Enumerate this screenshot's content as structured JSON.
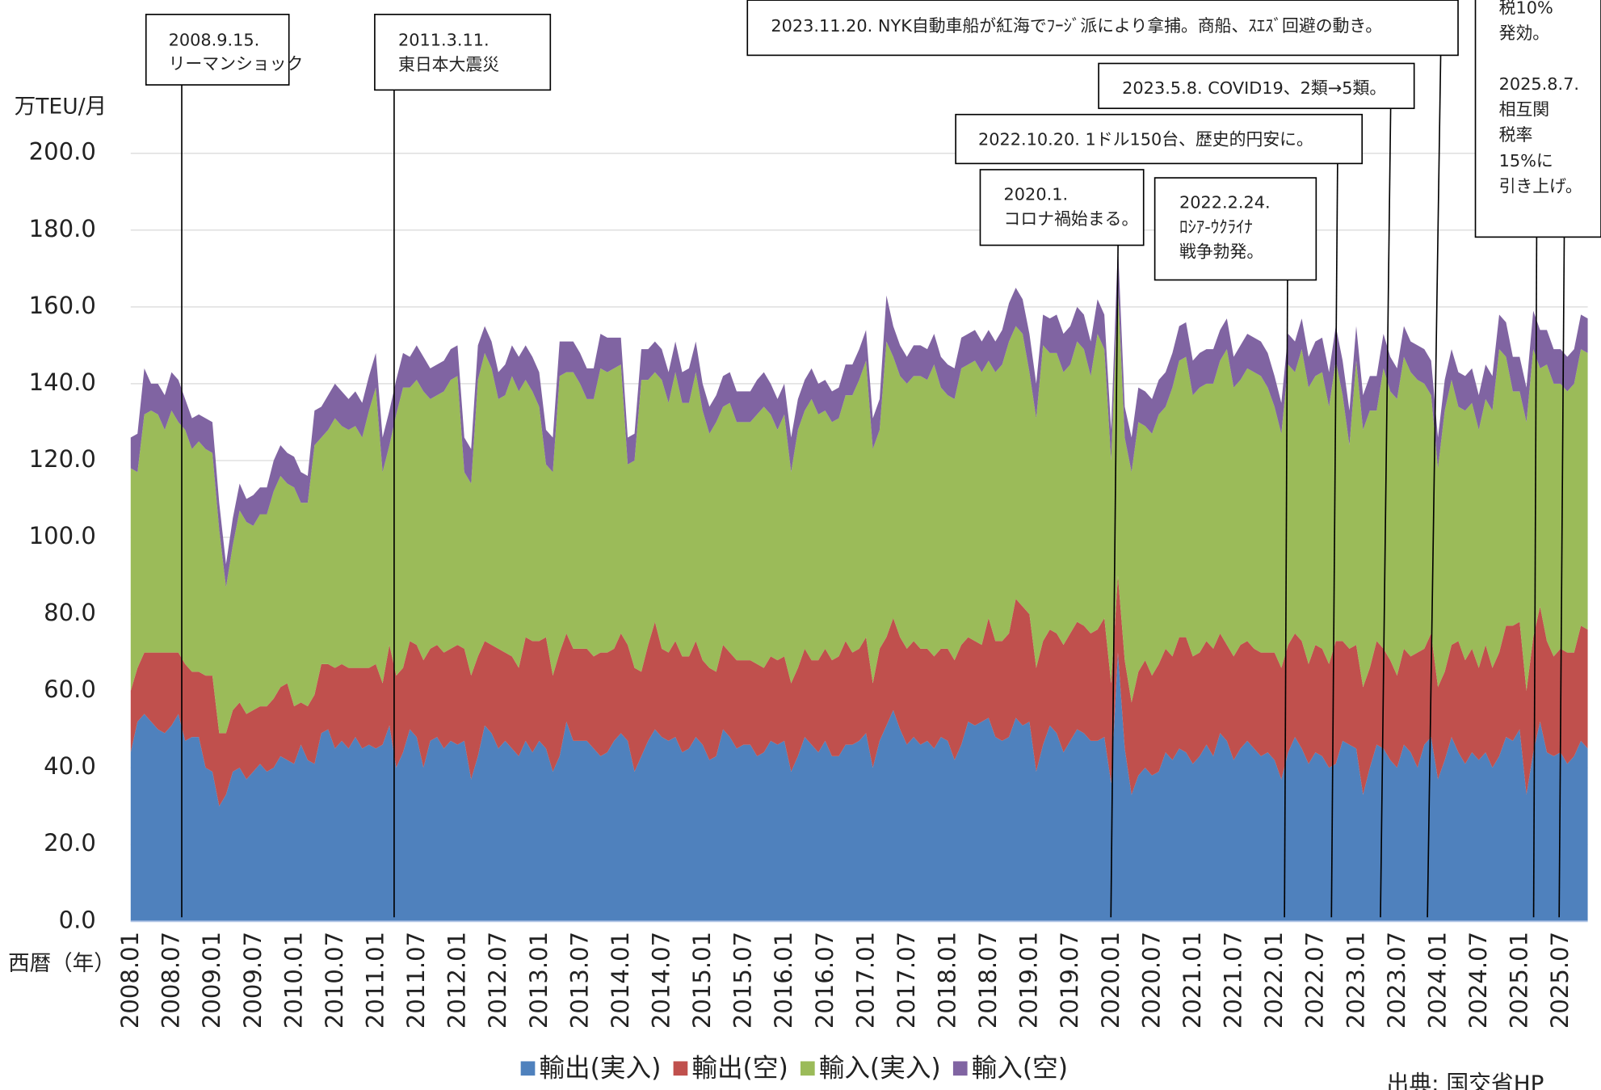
{
  "chart_data": {
    "type": "area",
    "y_label": "万TEU/月",
    "x_label": "西暦（年）",
    "source": "出典: 国交省HP",
    "stacked": true,
    "grid": true,
    "legend": "bottom",
    "ylim": [
      0,
      200
    ],
    "yticks": [
      {
        "value": 0,
        "label": "0.0"
      },
      {
        "value": 20,
        "label": "20.0"
      },
      {
        "value": 40,
        "label": "40.0"
      },
      {
        "value": 60,
        "label": "60.0"
      },
      {
        "value": 80,
        "label": "80.0"
      },
      {
        "value": 100,
        "label": "100.0"
      },
      {
        "value": 120,
        "label": "120.0"
      },
      {
        "value": 140,
        "label": "140.0"
      },
      {
        "value": 160,
        "label": "160.0"
      },
      {
        "value": 180,
        "label": "180.0"
      },
      {
        "value": 200,
        "label": "200.0"
      }
    ],
    "categories": [
      "2008.01",
      null,
      null,
      null,
      null,
      null,
      "2008.07",
      null,
      null,
      null,
      null,
      null,
      "2009.01",
      null,
      null,
      null,
      null,
      null,
      "2009.07",
      null,
      null,
      null,
      null,
      null,
      "2010.01",
      null,
      null,
      null,
      null,
      null,
      "2010.07",
      null,
      null,
      null,
      null,
      null,
      "2011.01",
      null,
      null,
      null,
      null,
      null,
      "2011.07",
      null,
      null,
      null,
      null,
      null,
      "2012.01",
      null,
      null,
      null,
      null,
      null,
      "2012.07",
      null,
      null,
      null,
      null,
      null,
      "2013.01",
      null,
      null,
      null,
      null,
      null,
      "2013.07",
      null,
      null,
      null,
      null,
      null,
      "2014.01",
      null,
      null,
      null,
      null,
      null,
      "2014.07",
      null,
      null,
      null,
      null,
      null,
      "2015.01",
      null,
      null,
      null,
      null,
      null,
      "2015.07",
      null,
      null,
      null,
      null,
      null,
      "2016.01",
      null,
      null,
      null,
      null,
      null,
      "2016.07",
      null,
      null,
      null,
      null,
      null,
      "2017.01",
      null,
      null,
      null,
      null,
      null,
      "2017.07",
      null,
      null,
      null,
      null,
      null,
      "2018.01",
      null,
      null,
      null,
      null,
      null,
      "2018.07",
      null,
      null,
      null,
      null,
      null,
      "2019.01",
      null,
      null,
      null,
      null,
      null,
      "2019.07",
      null,
      null,
      null,
      null,
      null,
      "2020.01",
      null,
      null,
      null,
      null,
      null,
      "2020.07",
      null,
      null,
      null,
      null,
      null,
      "2021.01",
      null,
      null,
      null,
      null,
      null,
      "2021.07",
      null,
      null,
      null,
      null,
      null,
      "2022.01",
      null,
      null,
      null,
      null,
      null,
      "2022.07",
      null,
      null,
      null,
      null,
      null,
      "2023.01",
      null,
      null,
      null,
      null,
      null,
      "2023.07",
      null,
      null,
      null,
      null,
      null,
      "2024.01",
      null,
      null,
      null,
      null,
      null,
      "2024.07",
      null,
      null,
      null,
      null,
      null,
      "2025.01",
      null,
      null,
      null,
      null,
      null,
      "2025.07",
      null,
      null,
      null,
      null
    ],
    "series": [
      {
        "name": "輸出(実入)",
        "color": "#4f81bd",
        "values": [
          44,
          52,
          54,
          52,
          50,
          49,
          51,
          54,
          47,
          48,
          48,
          40,
          39,
          30,
          33,
          39,
          40,
          37,
          39,
          41,
          39,
          40,
          43,
          42,
          41,
          46,
          42,
          41,
          49,
          50,
          45,
          47,
          45,
          48,
          45,
          46,
          45,
          46,
          51,
          40,
          44,
          50,
          48,
          40,
          47,
          48,
          45,
          47,
          46,
          47,
          37,
          43,
          51,
          49,
          45,
          47,
          45,
          43,
          47,
          44,
          47,
          45,
          39,
          43,
          52,
          47,
          47,
          47,
          45,
          43,
          44,
          47,
          49,
          47,
          39,
          43,
          47,
          50,
          48,
          47,
          48,
          44,
          45,
          48,
          46,
          42,
          43,
          50,
          48,
          45,
          46,
          46,
          43,
          44,
          47,
          46,
          47,
          39,
          43,
          48,
          46,
          44,
          47,
          43,
          43,
          46,
          46,
          47,
          49,
          40,
          47,
          51,
          55,
          50,
          46,
          48,
          46,
          47,
          45,
          48,
          47,
          42,
          46,
          52,
          51,
          52,
          53,
          48,
          47,
          48,
          53,
          51,
          52,
          39,
          46,
          51,
          49,
          44,
          47,
          50,
          49,
          47,
          47,
          48,
          36,
          70,
          45,
          33,
          38,
          40,
          38,
          39,
          44,
          42,
          45,
          44,
          41,
          43,
          46,
          43,
          49,
          47,
          42,
          45,
          47,
          45,
          43,
          44,
          42,
          37,
          44,
          48,
          45,
          41,
          44,
          43,
          40,
          41,
          47,
          46,
          45,
          33,
          40,
          46,
          45,
          42,
          40,
          46,
          44,
          40,
          46,
          48,
          37,
          42,
          48,
          44,
          41,
          44,
          42,
          44,
          40,
          43,
          48,
          47,
          50,
          33,
          44,
          52,
          44,
          43,
          44,
          41,
          43,
          47,
          45
        ]
      },
      {
        "name": "輸出(空)",
        "color": "#c0504d",
        "values": [
          16,
          14,
          16,
          18,
          20,
          21,
          19,
          16,
          20,
          17,
          17,
          24,
          25,
          19,
          16,
          16,
          17,
          17,
          16,
          15,
          17,
          18,
          18,
          20,
          15,
          11,
          14,
          18,
          18,
          17,
          21,
          20,
          21,
          18,
          21,
          20,
          22,
          16,
          21,
          24,
          22,
          23,
          24,
          28,
          24,
          24,
          25,
          24,
          26,
          24,
          27,
          26,
          22,
          23,
          26,
          23,
          24,
          23,
          27,
          29,
          26,
          29,
          25,
          27,
          23,
          24,
          24,
          24,
          24,
          27,
          26,
          24,
          26,
          25,
          27,
          22,
          25,
          28,
          23,
          23,
          25,
          25,
          24,
          25,
          22,
          24,
          22,
          22,
          22,
          23,
          22,
          22,
          24,
          22,
          22,
          22,
          22,
          23,
          23,
          23,
          22,
          24,
          24,
          25,
          26,
          27,
          24,
          24,
          25,
          22,
          24,
          23,
          24,
          24,
          25,
          25,
          25,
          24,
          24,
          23,
          24,
          26,
          26,
          22,
          22,
          20,
          26,
          25,
          26,
          27,
          31,
          31,
          28,
          27,
          27,
          25,
          26,
          28,
          28,
          28,
          28,
          28,
          29,
          31,
          26,
          20,
          23,
          24,
          27,
          28,
          26,
          28,
          27,
          27,
          29,
          30,
          28,
          27,
          27,
          28,
          26,
          25,
          27,
          27,
          26,
          26,
          27,
          26,
          28,
          29,
          28,
          27,
          28,
          26,
          28,
          28,
          27,
          32,
          26,
          25,
          27,
          28,
          26,
          27,
          26,
          26,
          24,
          25,
          25,
          30,
          25,
          27,
          24,
          23,
          24,
          29,
          27,
          27,
          24,
          28,
          26,
          27,
          29,
          30,
          28,
          27,
          30,
          30,
          29,
          26,
          27,
          29,
          27,
          30,
          31
        ]
      },
      {
        "name": "輸入(実入)",
        "color": "#9bbb59",
        "values": [
          58,
          51,
          62,
          63,
          62,
          58,
          63,
          60,
          61,
          58,
          60,
          59,
          58,
          53,
          38,
          43,
          50,
          50,
          48,
          50,
          50,
          54,
          55,
          52,
          57,
          52,
          53,
          65,
          59,
          61,
          65,
          62,
          62,
          63,
          60,
          67,
          72,
          55,
          52,
          68,
          73,
          66,
          69,
          70,
          65,
          65,
          68,
          70,
          70,
          46,
          50,
          72,
          75,
          72,
          65,
          67,
          73,
          72,
          67,
          65,
          61,
          45,
          53,
          72,
          68,
          72,
          69,
          65,
          67,
          74,
          73,
          73,
          70,
          47,
          54,
          76,
          69,
          65,
          70,
          65,
          70,
          66,
          66,
          70,
          65,
          61,
          65,
          62,
          65,
          62,
          62,
          62,
          65,
          68,
          63,
          60,
          63,
          55,
          62,
          62,
          68,
          64,
          62,
          62,
          62,
          64,
          67,
          70,
          72,
          61,
          57,
          77,
          68,
          68,
          69,
          69,
          71,
          70,
          76,
          68,
          66,
          68,
          72,
          71,
          73,
          71,
          67,
          70,
          72,
          76,
          71,
          71,
          63,
          65,
          77,
          72,
          73,
          71,
          70,
          73,
          72,
          67,
          77,
          70,
          58,
          75,
          58,
          60,
          65,
          61,
          63,
          65,
          63,
          70,
          72,
          73,
          68,
          69,
          67,
          69,
          71,
          77,
          70,
          69,
          71,
          72,
          72,
          69,
          64,
          61,
          73,
          68,
          76,
          72,
          70,
          72,
          67,
          73,
          64,
          53,
          74,
          67,
          67,
          60,
          73,
          70,
          72,
          76,
          74,
          71,
          69,
          62,
          57,
          68,
          69,
          61,
          65,
          64,
          62,
          64,
          67,
          79,
          70,
          61,
          60,
          70,
          75,
          62,
          72,
          71,
          69,
          68,
          70,
          72,
          72
        ]
      },
      {
        "name": "輸入(空)",
        "color": "#8064a2",
        "values": [
          8,
          10,
          12,
          7,
          8,
          9,
          10,
          11,
          8,
          8,
          7,
          8,
          8,
          7,
          6,
          7,
          7,
          6,
          8,
          7,
          7,
          8,
          8,
          8,
          8,
          8,
          7,
          9,
          8,
          9,
          9,
          9,
          8,
          9,
          9,
          9,
          9,
          9,
          9,
          9,
          9,
          8,
          9,
          9,
          8,
          8,
          8,
          8,
          8,
          9,
          9,
          9,
          7,
          7,
          7,
          8,
          8,
          9,
          9,
          9,
          9,
          9,
          9,
          9,
          8,
          8,
          8,
          8,
          8,
          9,
          9,
          8,
          7,
          7,
          7,
          8,
          8,
          8,
          8,
          8,
          8,
          8,
          9,
          8,
          7,
          7,
          7,
          8,
          8,
          8,
          8,
          8,
          9,
          9,
          8,
          8,
          8,
          9,
          8,
          8,
          8,
          8,
          8,
          8,
          8,
          8,
          8,
          8,
          8,
          8,
          8,
          12,
          8,
          8,
          7,
          8,
          8,
          8,
          8,
          8,
          8,
          8,
          8,
          8,
          8,
          8,
          8,
          8,
          9,
          10,
          10,
          9,
          10,
          9,
          8,
          9,
          10,
          10,
          10,
          9,
          9,
          9,
          9,
          9,
          8,
          11,
          8,
          9,
          9,
          9,
          9,
          9,
          9,
          9,
          9,
          9,
          9,
          9,
          9,
          9,
          8,
          8,
          8,
          9,
          9,
          9,
          9,
          9,
          8,
          8,
          8,
          8,
          8,
          8,
          9,
          9,
          9,
          9,
          9,
          9,
          9,
          9,
          9,
          9,
          9,
          9,
          8,
          8,
          8,
          9,
          9,
          9,
          8,
          8,
          8,
          9,
          9,
          9,
          9,
          9,
          9,
          9,
          9,
          9,
          9,
          9,
          10,
          10,
          9,
          9,
          9,
          9,
          9,
          9,
          9
        ]
      }
    ],
    "annotations": [
      {
        "lines": [
          "2008.9.15.",
          "リーマンショック"
        ]
      },
      {
        "lines": [
          "2011.3.11.",
          "東日本大震災"
        ]
      },
      {
        "lines": [
          "2023.11.20. NYK自動車船が紅海でﾌｰｼﾞ派により拿捕。商船、ｽｴｽﾞ回避の動き。"
        ]
      },
      {
        "lines": [
          "2023.5.8. COVID19、2類→5類。"
        ]
      },
      {
        "lines": [
          "2022.10.20. 1ドル150台、歴史的円安に。"
        ]
      },
      {
        "lines": [
          "2020.1.",
          "コロナ禍始まる。"
        ]
      },
      {
        "lines": [
          "2022.2.24.",
          "ﾛｼｱ-ｳｸﾗｲﾅ",
          "戦争勃発。"
        ]
      },
      {
        "lines": [
          "税10%",
          "発効。"
        ]
      },
      {
        "lines": [
          "2025.8.7.",
          "相互関",
          "税率",
          "15%に",
          "引き上げ。"
        ]
      }
    ]
  }
}
